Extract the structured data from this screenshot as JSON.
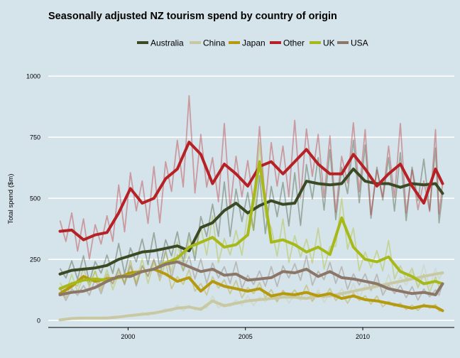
{
  "chart_data": {
    "type": "line",
    "title": "Seasonally adjusted NZ tourism spend by country of origin",
    "xlabel": "",
    "ylabel": "Total spend ($m)",
    "xlim": [
      1996.6,
      2013.9
    ],
    "ylim": [
      -20,
      1050
    ],
    "x_ticks": [
      2000,
      2005,
      2010
    ],
    "y_ticks": [
      0,
      250,
      500,
      750,
      1000
    ],
    "grid": "horizontal",
    "legend_position": "top",
    "background": "#d5e4eb",
    "grid_color": "#ffffff",
    "series": [
      {
        "name": "Australia",
        "color": "#3b4a25",
        "x": [
          1997.1,
          1997.6,
          1998.1,
          1998.6,
          1999.1,
          1999.6,
          2000.1,
          2000.6,
          2001.1,
          2001.6,
          2002.1,
          2002.6,
          2003.1,
          2003.6,
          2004.1,
          2004.6,
          2005.1,
          2005.6,
          2006.1,
          2006.6,
          2007.1,
          2007.6,
          2008.1,
          2008.6,
          2009.1,
          2009.6,
          2010.1,
          2010.6,
          2011.1,
          2011.6,
          2012.1,
          2012.6,
          2013.1,
          2013.4
        ],
        "y": [
          190,
          205,
          210,
          215,
          225,
          250,
          265,
          280,
          285,
          295,
          305,
          285,
          380,
          400,
          450,
          480,
          440,
          470,
          490,
          475,
          480,
          570,
          560,
          555,
          560,
          620,
          570,
          560,
          560,
          545,
          560,
          555,
          560,
          520
        ]
      },
      {
        "name": "China",
        "color": "#c8c8a2",
        "x": [
          1997.1,
          1997.6,
          1998.1,
          1998.6,
          1999.1,
          1999.6,
          2000.1,
          2000.6,
          2001.1,
          2001.6,
          2002.1,
          2002.6,
          2003.1,
          2003.6,
          2004.1,
          2004.6,
          2005.1,
          2005.6,
          2006.1,
          2006.6,
          2007.1,
          2007.6,
          2008.1,
          2008.6,
          2009.1,
          2009.6,
          2010.1,
          2010.6,
          2011.1,
          2011.6,
          2012.1,
          2012.6,
          2013.1,
          2013.4
        ],
        "y": [
          2,
          8,
          10,
          10,
          10,
          14,
          20,
          25,
          30,
          40,
          50,
          55,
          45,
          80,
          60,
          70,
          80,
          85,
          90,
          95,
          95,
          90,
          100,
          100,
          110,
          120,
          130,
          140,
          150,
          160,
          170,
          180,
          190,
          195
        ]
      },
      {
        "name": "Japan",
        "color": "#b59a0f",
        "x": [
          1997.1,
          1997.6,
          1998.1,
          1998.6,
          1999.1,
          1999.6,
          2000.1,
          2000.6,
          2001.1,
          2001.6,
          2002.1,
          2002.6,
          2003.1,
          2003.6,
          2004.1,
          2004.6,
          2005.1,
          2005.6,
          2006.1,
          2006.6,
          2007.1,
          2007.6,
          2008.1,
          2008.6,
          2009.1,
          2009.6,
          2010.1,
          2010.6,
          2011.1,
          2011.6,
          2012.1,
          2012.6,
          2013.1,
          2013.4
        ],
        "y": [
          110,
          140,
          180,
          160,
          170,
          175,
          195,
          200,
          210,
          190,
          160,
          175,
          120,
          160,
          140,
          130,
          120,
          130,
          100,
          110,
          105,
          115,
          100,
          110,
          90,
          100,
          85,
          80,
          70,
          60,
          50,
          60,
          55,
          40
        ]
      },
      {
        "name": "Other",
        "color": "#b52125",
        "x": [
          1997.1,
          1997.6,
          1998.1,
          1998.6,
          1999.1,
          1999.6,
          2000.1,
          2000.6,
          2001.1,
          2001.6,
          2002.1,
          2002.6,
          2003.1,
          2003.6,
          2004.1,
          2004.6,
          2005.1,
          2005.6,
          2006.1,
          2006.6,
          2007.1,
          2007.6,
          2008.1,
          2008.6,
          2009.1,
          2009.6,
          2010.1,
          2010.6,
          2011.1,
          2011.6,
          2012.1,
          2012.6,
          2013.1,
          2013.4
        ],
        "y": [
          365,
          370,
          330,
          350,
          360,
          440,
          540,
          480,
          500,
          580,
          620,
          730,
          680,
          560,
          640,
          600,
          550,
          630,
          650,
          600,
          650,
          700,
          640,
          600,
          600,
          680,
          620,
          550,
          600,
          640,
          550,
          480,
          620,
          560
        ]
      },
      {
        "name": "UK",
        "color": "#a7b918",
        "x": [
          1997.1,
          1997.6,
          1998.1,
          1998.6,
          1999.1,
          1999.6,
          2000.1,
          2000.6,
          2001.1,
          2001.6,
          2002.1,
          2002.6,
          2003.1,
          2003.6,
          2004.1,
          2004.6,
          2005.1,
          2005.6,
          2006.1,
          2006.6,
          2007.1,
          2007.6,
          2008.1,
          2008.6,
          2009.1,
          2009.6,
          2010.1,
          2010.6,
          2011.1,
          2011.6,
          2012.1,
          2012.6,
          2013.1,
          2013.4
        ],
        "y": [
          130,
          150,
          165,
          170,
          165,
          175,
          185,
          200,
          210,
          235,
          255,
          300,
          320,
          340,
          300,
          310,
          350,
          650,
          320,
          330,
          310,
          280,
          300,
          270,
          420,
          300,
          250,
          240,
          260,
          200,
          180,
          150,
          160,
          150
        ]
      },
      {
        "name": "USA",
        "color": "#8c7667",
        "x": [
          1997.1,
          1997.6,
          1998.1,
          1998.6,
          1999.1,
          1999.6,
          2000.1,
          2000.6,
          2001.1,
          2001.6,
          2002.1,
          2002.6,
          2003.1,
          2003.6,
          2004.1,
          2004.6,
          2005.1,
          2005.6,
          2006.1,
          2006.6,
          2007.1,
          2007.6,
          2008.1,
          2008.6,
          2009.1,
          2009.6,
          2010.1,
          2010.6,
          2011.1,
          2011.6,
          2012.1,
          2012.6,
          2013.1,
          2013.4
        ],
        "y": [
          105,
          115,
          120,
          135,
          160,
          180,
          180,
          200,
          210,
          230,
          240,
          220,
          200,
          210,
          185,
          190,
          165,
          170,
          175,
          200,
          195,
          210,
          180,
          200,
          175,
          170,
          160,
          150,
          130,
          120,
          110,
          115,
          105,
          150
        ]
      }
    ]
  }
}
